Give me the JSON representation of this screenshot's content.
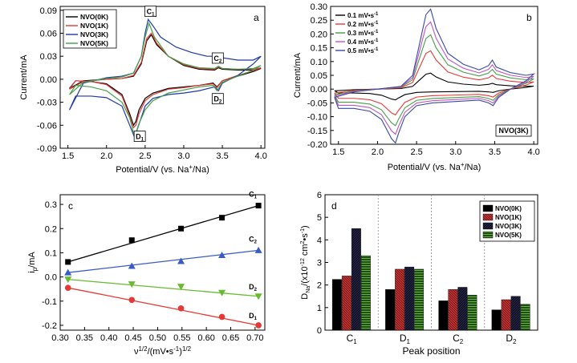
{
  "chart_data": [
    {
      "panel": "a",
      "type": "line",
      "xlabel": "Potential/V (vs. Na",
      "xlabel_sup": "+",
      "xlabel_end": "/Na)",
      "ylabel": "Current/mA",
      "xlim": [
        1.4,
        4.05
      ],
      "ylim": [
        -0.09,
        0.095
      ],
      "xticks": [
        "1.5",
        "2.0",
        "2.5",
        "3.0",
        "3.5",
        "4.0"
      ],
      "yticks": [
        "0.09",
        "0.06",
        "0.03",
        "0.00",
        "-0.03",
        "-0.06",
        "-0.09"
      ],
      "legend_position": "top-left",
      "annotations": [
        {
          "text": "C",
          "sub": "1",
          "x": 2.56,
          "y": 0.086
        },
        {
          "text": "C",
          "sub": "2",
          "x": 3.43,
          "y": 0.025
        },
        {
          "text": "D",
          "sub": "2",
          "x": 3.43,
          "y": -0.028
        },
        {
          "text": "D",
          "sub": "1",
          "x": 2.42,
          "y": -0.077
        }
      ],
      "series": [
        {
          "name": "NVO(0K)",
          "color": "#000000",
          "x": [
            1.52,
            1.7,
            2.0,
            2.2,
            2.35,
            2.45,
            2.52,
            2.58,
            2.65,
            2.8,
            3.0,
            3.2,
            3.4,
            3.45,
            3.5,
            3.7,
            3.9,
            4.0,
            3.9,
            3.7,
            3.5,
            3.43,
            3.38,
            3.2,
            3.0,
            2.8,
            2.6,
            2.5,
            2.42,
            2.38,
            2.35,
            2.3,
            2.2,
            2.0,
            1.8,
            1.6,
            1.52
          ],
          "y": [
            -0.012,
            -0.002,
            0.0,
            0.001,
            0.004,
            0.02,
            0.05,
            0.058,
            0.045,
            0.03,
            0.018,
            0.013,
            0.012,
            0.015,
            0.013,
            0.012,
            0.012,
            0.014,
            0.01,
            0.004,
            -0.002,
            -0.01,
            -0.005,
            -0.008,
            -0.01,
            -0.012,
            -0.018,
            -0.025,
            -0.04,
            -0.055,
            -0.06,
            -0.045,
            -0.02,
            -0.006,
            -0.003,
            -0.002,
            -0.012
          ]
        },
        {
          "name": "NVO(1K)",
          "color": "#e53935",
          "x": [
            1.52,
            1.7,
            2.0,
            2.2,
            2.35,
            2.45,
            2.52,
            2.58,
            2.65,
            2.8,
            3.0,
            3.2,
            3.4,
            3.45,
            3.5,
            3.7,
            3.9,
            4.0,
            3.9,
            3.7,
            3.5,
            3.43,
            3.38,
            3.2,
            3.0,
            2.8,
            2.6,
            2.5,
            2.42,
            2.38,
            2.35,
            2.3,
            2.2,
            2.0,
            1.8,
            1.6,
            1.52
          ],
          "y": [
            -0.013,
            -0.003,
            0.0,
            0.001,
            0.005,
            0.022,
            0.053,
            0.06,
            0.047,
            0.03,
            0.019,
            0.014,
            0.013,
            0.016,
            0.014,
            0.013,
            0.013,
            0.015,
            0.011,
            0.005,
            -0.002,
            -0.011,
            -0.006,
            -0.008,
            -0.011,
            -0.013,
            -0.02,
            -0.028,
            -0.045,
            -0.06,
            -0.063,
            -0.048,
            -0.022,
            -0.007,
            -0.003,
            -0.002,
            -0.013
          ]
        },
        {
          "name": "NVO(3K)",
          "color": "#1e3aa8",
          "x": [
            1.52,
            1.7,
            2.0,
            2.2,
            2.35,
            2.45,
            2.5,
            2.54,
            2.6,
            2.7,
            2.9,
            3.1,
            3.3,
            3.4,
            3.45,
            3.5,
            3.7,
            3.9,
            4.0,
            3.9,
            3.7,
            3.5,
            3.45,
            3.4,
            3.2,
            3.0,
            2.8,
            2.6,
            2.5,
            2.45,
            2.4,
            2.36,
            2.3,
            2.2,
            2.0,
            1.8,
            1.6,
            1.52
          ],
          "y": [
            -0.04,
            -0.005,
            0.002,
            0.004,
            0.008,
            0.03,
            0.06,
            0.078,
            0.07,
            0.055,
            0.042,
            0.035,
            0.03,
            0.03,
            0.033,
            0.028,
            0.025,
            0.025,
            0.03,
            0.02,
            0.005,
            -0.005,
            -0.015,
            -0.01,
            -0.015,
            -0.018,
            -0.02,
            -0.025,
            -0.035,
            -0.05,
            -0.065,
            -0.075,
            -0.06,
            -0.035,
            -0.024,
            -0.022,
            -0.022,
            -0.04
          ]
        },
        {
          "name": "NVO(5K)",
          "color": "#43a047",
          "x": [
            1.52,
            1.7,
            2.0,
            2.2,
            2.35,
            2.45,
            2.5,
            2.55,
            2.62,
            2.8,
            3.0,
            3.2,
            3.4,
            3.45,
            3.5,
            3.7,
            3.9,
            4.0,
            3.9,
            3.7,
            3.5,
            3.43,
            3.38,
            3.2,
            3.0,
            2.8,
            2.6,
            2.5,
            2.42,
            2.38,
            2.35,
            2.3,
            2.2,
            2.0,
            1.8,
            1.6,
            1.52
          ],
          "y": [
            -0.02,
            -0.004,
            0.001,
            0.003,
            0.008,
            0.03,
            0.055,
            0.073,
            0.055,
            0.03,
            0.02,
            0.015,
            0.014,
            0.017,
            0.014,
            0.013,
            0.014,
            0.018,
            0.012,
            0.004,
            -0.004,
            -0.015,
            -0.008,
            -0.01,
            -0.014,
            -0.018,
            -0.028,
            -0.04,
            -0.058,
            -0.07,
            -0.07,
            -0.05,
            -0.03,
            -0.015,
            -0.01,
            -0.008,
            -0.02
          ]
        }
      ]
    },
    {
      "panel": "b",
      "type": "line",
      "xlabel": "Potential/V (vs. Na",
      "xlabel_sup": "+",
      "xlabel_end": "/Na)",
      "ylabel": "Current/mA",
      "xlim": [
        1.4,
        4.05
      ],
      "ylim": [
        -0.2,
        0.3
      ],
      "xticks": [
        "1.5",
        "2.0",
        "2.5",
        "3.0",
        "3.5",
        "4.0"
      ],
      "yticks": [
        "0.30",
        "0.25",
        "0.20",
        "0.15",
        "0.10",
        "0.05",
        "0.00",
        "-0.05",
        "-0.10",
        "-0.15",
        "-0.20"
      ],
      "legend_position": "top-left",
      "tag": "NVO(3K)",
      "series": [
        {
          "name": "0.1 mV•s",
          "sup": "-1",
          "color": "#000000",
          "scale": 0.2
        },
        {
          "name": "0.2 mV•s",
          "sup": "-1",
          "color": "#e53935",
          "scale": 0.48
        },
        {
          "name": "0.3 mV•s",
          "sup": "-1",
          "color": "#43a047",
          "scale": 0.68
        },
        {
          "name": "0.4 mV•s",
          "sup": "-1",
          "color": "#c154c1",
          "scale": 0.84
        },
        {
          "name": "0.5 mV•s",
          "sup": "-1",
          "color": "#3949ab",
          "scale": 1.0
        }
      ],
      "base_x": [
        1.45,
        1.7,
        2.0,
        2.3,
        2.45,
        2.55,
        2.62,
        2.68,
        2.75,
        2.9,
        3.1,
        3.3,
        3.42,
        3.47,
        3.52,
        3.7,
        3.9,
        4.0,
        3.9,
        3.7,
        3.55,
        3.48,
        3.42,
        3.3,
        3.0,
        2.7,
        2.5,
        2.35,
        2.27,
        2.23,
        2.18,
        2.05,
        1.9,
        1.7,
        1.5,
        1.45
      ],
      "base_y": [
        -0.03,
        -0.01,
        0.0,
        0.01,
        0.05,
        0.18,
        0.27,
        0.29,
        0.22,
        0.13,
        0.09,
        0.07,
        0.085,
        0.105,
        0.08,
        0.06,
        0.05,
        0.055,
        0.03,
        0.0,
        -0.03,
        -0.06,
        -0.05,
        -0.04,
        -0.045,
        -0.05,
        -0.06,
        -0.1,
        -0.16,
        -0.195,
        -0.18,
        -0.11,
        -0.08,
        -0.07,
        -0.07,
        -0.03
      ]
    },
    {
      "panel": "c",
      "type": "scatter",
      "xlabel": "ν",
      "xlabel_sup": "1/2",
      "xlabel_end": "/(mV•s",
      "xlabel_sup2": "-1",
      "xlabel_end2": ")",
      "xlabel_sup3": "1/2",
      "ylabel": "i",
      "ylabel_sub": "p",
      "ylabel_end": "/mA",
      "xlim": [
        0.3,
        0.72
      ],
      "ylim": [
        -0.22,
        0.34
      ],
      "xticks": [
        "0.30",
        "0.35",
        "0.40",
        "0.45",
        "0.50",
        "0.55",
        "0.60",
        "0.65",
        "0.70"
      ],
      "yticks": [
        "0.3",
        "0.2",
        "0.1",
        "0.0",
        "-0.1",
        "-0.2"
      ],
      "x": [
        0.316,
        0.447,
        0.548,
        0.632,
        0.707
      ],
      "series": [
        {
          "name": "C",
          "sub": "1",
          "color": "#000000",
          "marker": "square",
          "y": [
            0.062,
            0.152,
            0.2,
            0.245,
            0.295
          ]
        },
        {
          "name": "C",
          "sub": "2",
          "color": "#3a5bc7",
          "marker": "triangle-up",
          "y": [
            0.018,
            0.045,
            0.065,
            0.09,
            0.11
          ]
        },
        {
          "name": "D",
          "sub": "2",
          "color": "#66bb2e",
          "marker": "triangle-down",
          "y": [
            -0.01,
            -0.03,
            -0.04,
            -0.065,
            -0.08
          ]
        },
        {
          "name": "D",
          "sub": "1",
          "color": "#e53935",
          "marker": "circle",
          "y": [
            -0.045,
            -0.095,
            -0.13,
            -0.165,
            -0.2
          ]
        }
      ]
    },
    {
      "panel": "d",
      "type": "bar",
      "xlabel": "Peak position",
      "ylabel": "D",
      "ylabel_sub": "Na",
      "ylabel_end": "/(x10",
      "ylabel_sup": "-12",
      "ylabel_end2": " cm",
      "ylabel_sup2": "2",
      "ylabel_end3": "•s",
      "ylabel_sup3": "-1",
      "ylabel_end4": ")",
      "ylim": [
        0,
        6
      ],
      "yticks": [
        "0",
        "1",
        "2",
        "3",
        "4",
        "5",
        "6"
      ],
      "categories": [
        {
          "name": "C",
          "sub": "1"
        },
        {
          "name": "D",
          "sub": "1"
        },
        {
          "name": "C",
          "sub": "2"
        },
        {
          "name": "D",
          "sub": "2"
        }
      ],
      "series": [
        {
          "name": "NVO(0K)",
          "color": "#000000",
          "values": [
            2.25,
            1.8,
            1.3,
            0.9
          ]
        },
        {
          "name": "NVO(1K)",
          "color": "#8b1a1a",
          "values": [
            2.4,
            2.7,
            1.8,
            1.35
          ]
        },
        {
          "name": "NVO(3K)",
          "color": "#1a1a3a",
          "values": [
            4.5,
            2.8,
            1.9,
            1.5
          ]
        },
        {
          "name": "NVO(5K)",
          "color": "#2e6b1f",
          "values": [
            3.3,
            2.7,
            1.55,
            1.15
          ]
        }
      ],
      "legend_position": "top-right"
    }
  ],
  "labels": {
    "panel_a": "a",
    "panel_b": "b",
    "panel_c": "c",
    "panel_d": "d"
  }
}
